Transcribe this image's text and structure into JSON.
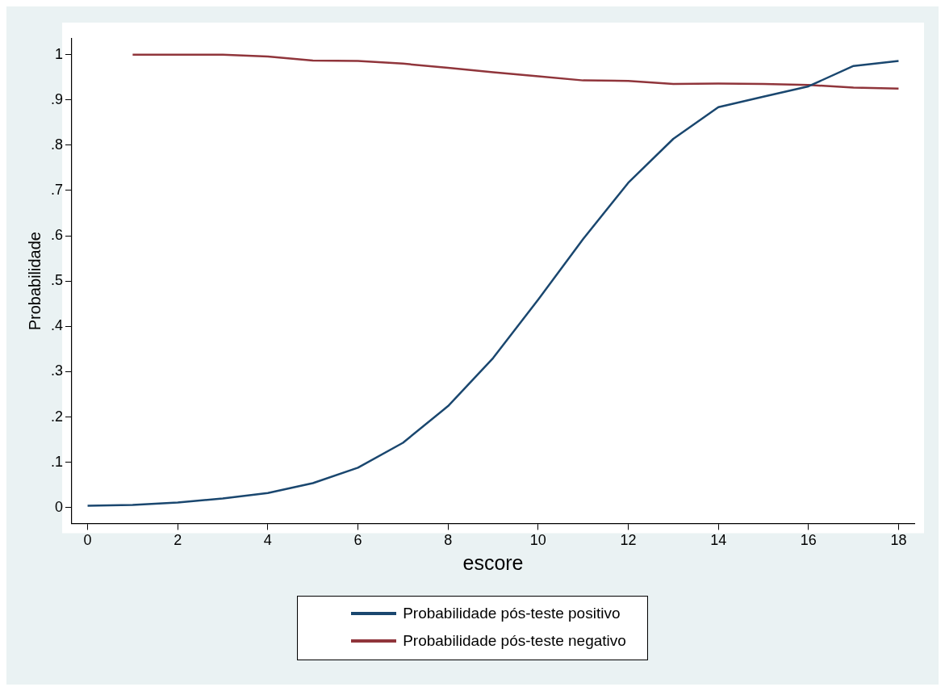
{
  "chart_data": {
    "type": "line",
    "xlabel": "escore",
    "ylabel": "Probabilidade",
    "x": [
      0,
      1,
      2,
      3,
      4,
      5,
      6,
      7,
      8,
      9,
      10,
      11,
      12,
      13,
      14,
      15,
      16,
      17,
      18
    ],
    "series": [
      {
        "name": "Probabilidade pós-teste positivo",
        "color": "#1a476f",
        "values": [
          0.004,
          0.006,
          0.011,
          0.02,
          0.032,
          0.054,
          0.088,
          0.143,
          0.224,
          0.33,
          0.459,
          0.593,
          0.717,
          0.814,
          0.884,
          0.907,
          0.93,
          0.975,
          0.986
        ]
      },
      {
        "name": "Probabilidade pós-teste negativo",
        "color": "#90353b",
        "x": [
          1,
          2,
          3,
          4,
          5,
          6,
          7,
          8,
          9,
          10,
          11,
          12,
          13,
          14,
          15,
          16,
          17,
          18
        ],
        "values": [
          1,
          1,
          1,
          0.996,
          0.987,
          0.986,
          0.98,
          0.971,
          0.961,
          0.952,
          0.943,
          0.942,
          0.935,
          0.936,
          0.935,
          0.933,
          0.927,
          0.925
        ]
      }
    ],
    "xlim": [
      -0.35,
      18.35
    ],
    "xticks": [
      0,
      2,
      4,
      6,
      8,
      10,
      12,
      14,
      16,
      18
    ],
    "ylim": [
      -0.035,
      1.035
    ],
    "yticks": [
      0,
      {
        "value": 0.1,
        "label": ".1"
      },
      {
        "value": 0.2,
        "label": ".2"
      },
      {
        "value": 0.3,
        "label": ".3"
      },
      {
        "value": 0.4,
        "label": ".4"
      },
      {
        "value": 0.5,
        "label": ".5"
      },
      {
        "value": 0.6,
        "label": ".6"
      },
      {
        "value": 0.7,
        "label": ".7"
      },
      {
        "value": 0.8,
        "label": ".8"
      },
      {
        "value": 0.9,
        "label": ".9"
      },
      1
    ],
    "grid": false,
    "legend": "bottom",
    "marker": "none",
    "line_style": "solid"
  }
}
